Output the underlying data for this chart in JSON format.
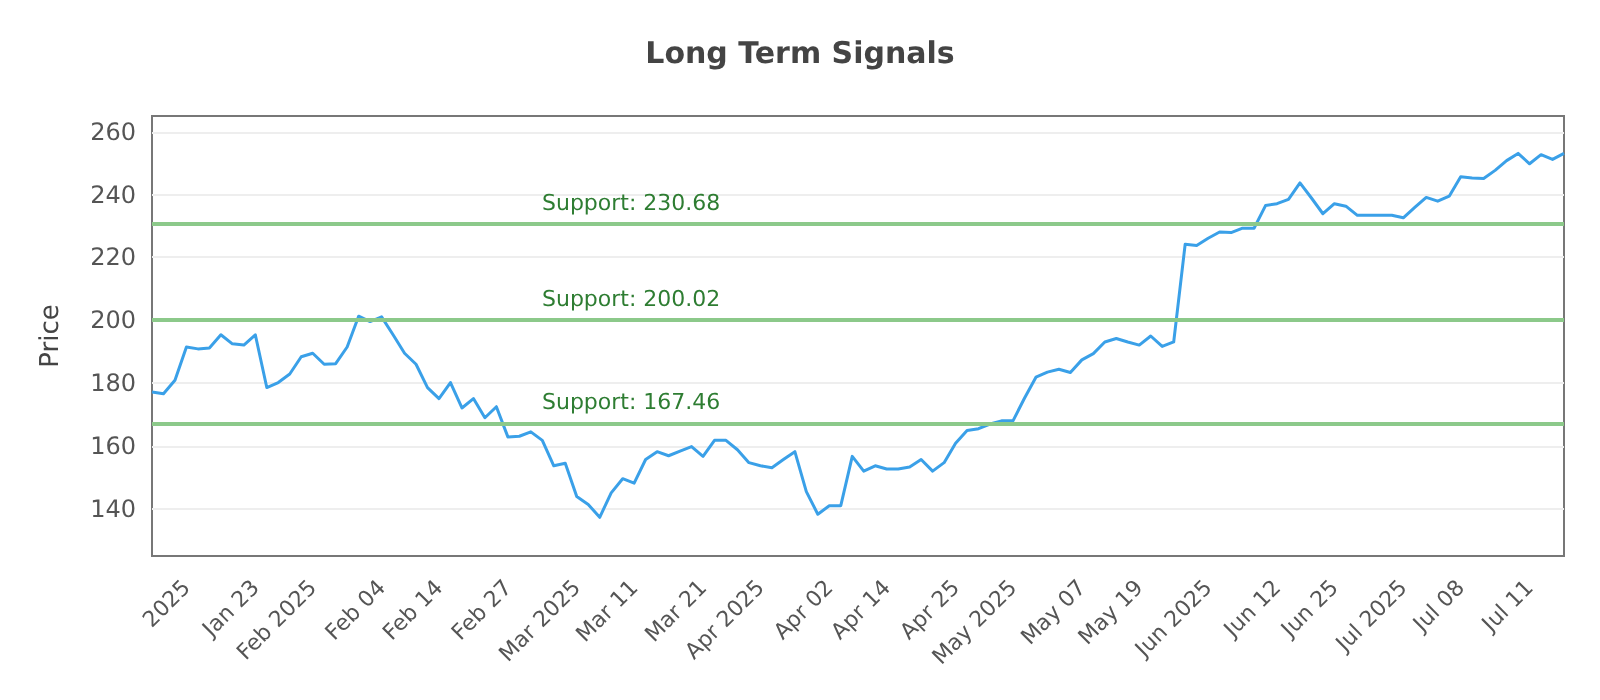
{
  "chart_data": {
    "type": "line",
    "title": "Long Term Signals",
    "ylabel": "Price",
    "grid": "y",
    "marker": "none",
    "line_style": "solid",
    "ylim": [
      125,
      265
    ],
    "yticks": [
      140,
      160,
      180,
      200,
      220,
      240,
      260
    ],
    "categories": [
      null,
      null,
      null,
      "2025",
      null,
      null,
      null,
      null,
      null,
      "Jan 23",
      null,
      null,
      null,
      null,
      "Feb 2025",
      null,
      null,
      null,
      null,
      null,
      "Feb 04",
      null,
      null,
      null,
      null,
      "Feb 14",
      null,
      null,
      null,
      null,
      null,
      "Feb 27",
      null,
      null,
      null,
      null,
      null,
      "Mar 2025",
      null,
      null,
      null,
      null,
      "Mar 11",
      null,
      null,
      null,
      null,
      null,
      "Mar 21",
      null,
      null,
      null,
      null,
      "Apr 2025",
      null,
      null,
      null,
      null,
      null,
      "Apr 02",
      null,
      null,
      null,
      null,
      "Apr 14",
      null,
      null,
      null,
      null,
      null,
      "Apr 25",
      null,
      null,
      null,
      null,
      "May 2025",
      null,
      null,
      null,
      null,
      null,
      "May 07",
      null,
      null,
      null,
      null,
      "May 19",
      null,
      null,
      null,
      null,
      null,
      "Jun 2025",
      null,
      null,
      null,
      null,
      null,
      "Jun 12",
      null,
      null,
      null,
      null,
      "Jun 25",
      null,
      null,
      null,
      null,
      null,
      "Jul 2025",
      null,
      null,
      null,
      null,
      "Jul 08",
      null,
      null,
      null,
      null,
      null,
      "Jul 11",
      null,
      null,
      null
    ],
    "ref_lines": [
      {
        "axis": "y",
        "value": 230.68,
        "label": "Support: 230.68",
        "color": "#8cc98a"
      },
      {
        "axis": "y",
        "value": 200.02,
        "label": "Support: 200.02",
        "color": "#8cc98a"
      },
      {
        "axis": "y",
        "value": 167.46,
        "label": "Support: 167.46",
        "color": "#8cc98a"
      }
    ],
    "series": [
      {
        "color": "#3aa0e8",
        "values": [
          177.2,
          176.6,
          180.9,
          191.5,
          190.9,
          191.2,
          195.4,
          192.5,
          192.1,
          195.4,
          178.6,
          180.2,
          182.9,
          188.4,
          189.5,
          186,
          186.2,
          191.5,
          201.3,
          199.6,
          201.1,
          195.4,
          189.5,
          186,
          178.6,
          175.1,
          180.2,
          172.1,
          175.1,
          169,
          172.5,
          162.9,
          163.1,
          164.5,
          161.8,
          153.7,
          154.5,
          143.9,
          141.4,
          137.3,
          145.1,
          149.6,
          148.2,
          155.7,
          158.2,
          156.9,
          158.4,
          159.8,
          156.7,
          161.8,
          161.8,
          158.8,
          154.7,
          153.7,
          153.1,
          155.7,
          158.2,
          145.5,
          138.3,
          141,
          141,
          156.7,
          152,
          153.7,
          152.7,
          152.7,
          153.3,
          155.7,
          152,
          154.7,
          160.9,
          164.9,
          165.5,
          167,
          168,
          168,
          175.2,
          181.9,
          183.5,
          184.4,
          183.4,
          187.4,
          189.4,
          193.1,
          194.2,
          193.1,
          192.1,
          195,
          191.7,
          193.1,
          224.2,
          223.8,
          226.1,
          228.1,
          227.9,
          229.3,
          229.3,
          236.5,
          237.1,
          238.5,
          243.7,
          238.9,
          233.9,
          237.1,
          236.3,
          233.4,
          233.4,
          233.4,
          233.4,
          232.6,
          235.9,
          239.1,
          237.9,
          239.5,
          245.7,
          245.3,
          245.1,
          247.7,
          250.8,
          253.1,
          249.8,
          252.7,
          251.2,
          253.1
        ]
      }
    ]
  }
}
